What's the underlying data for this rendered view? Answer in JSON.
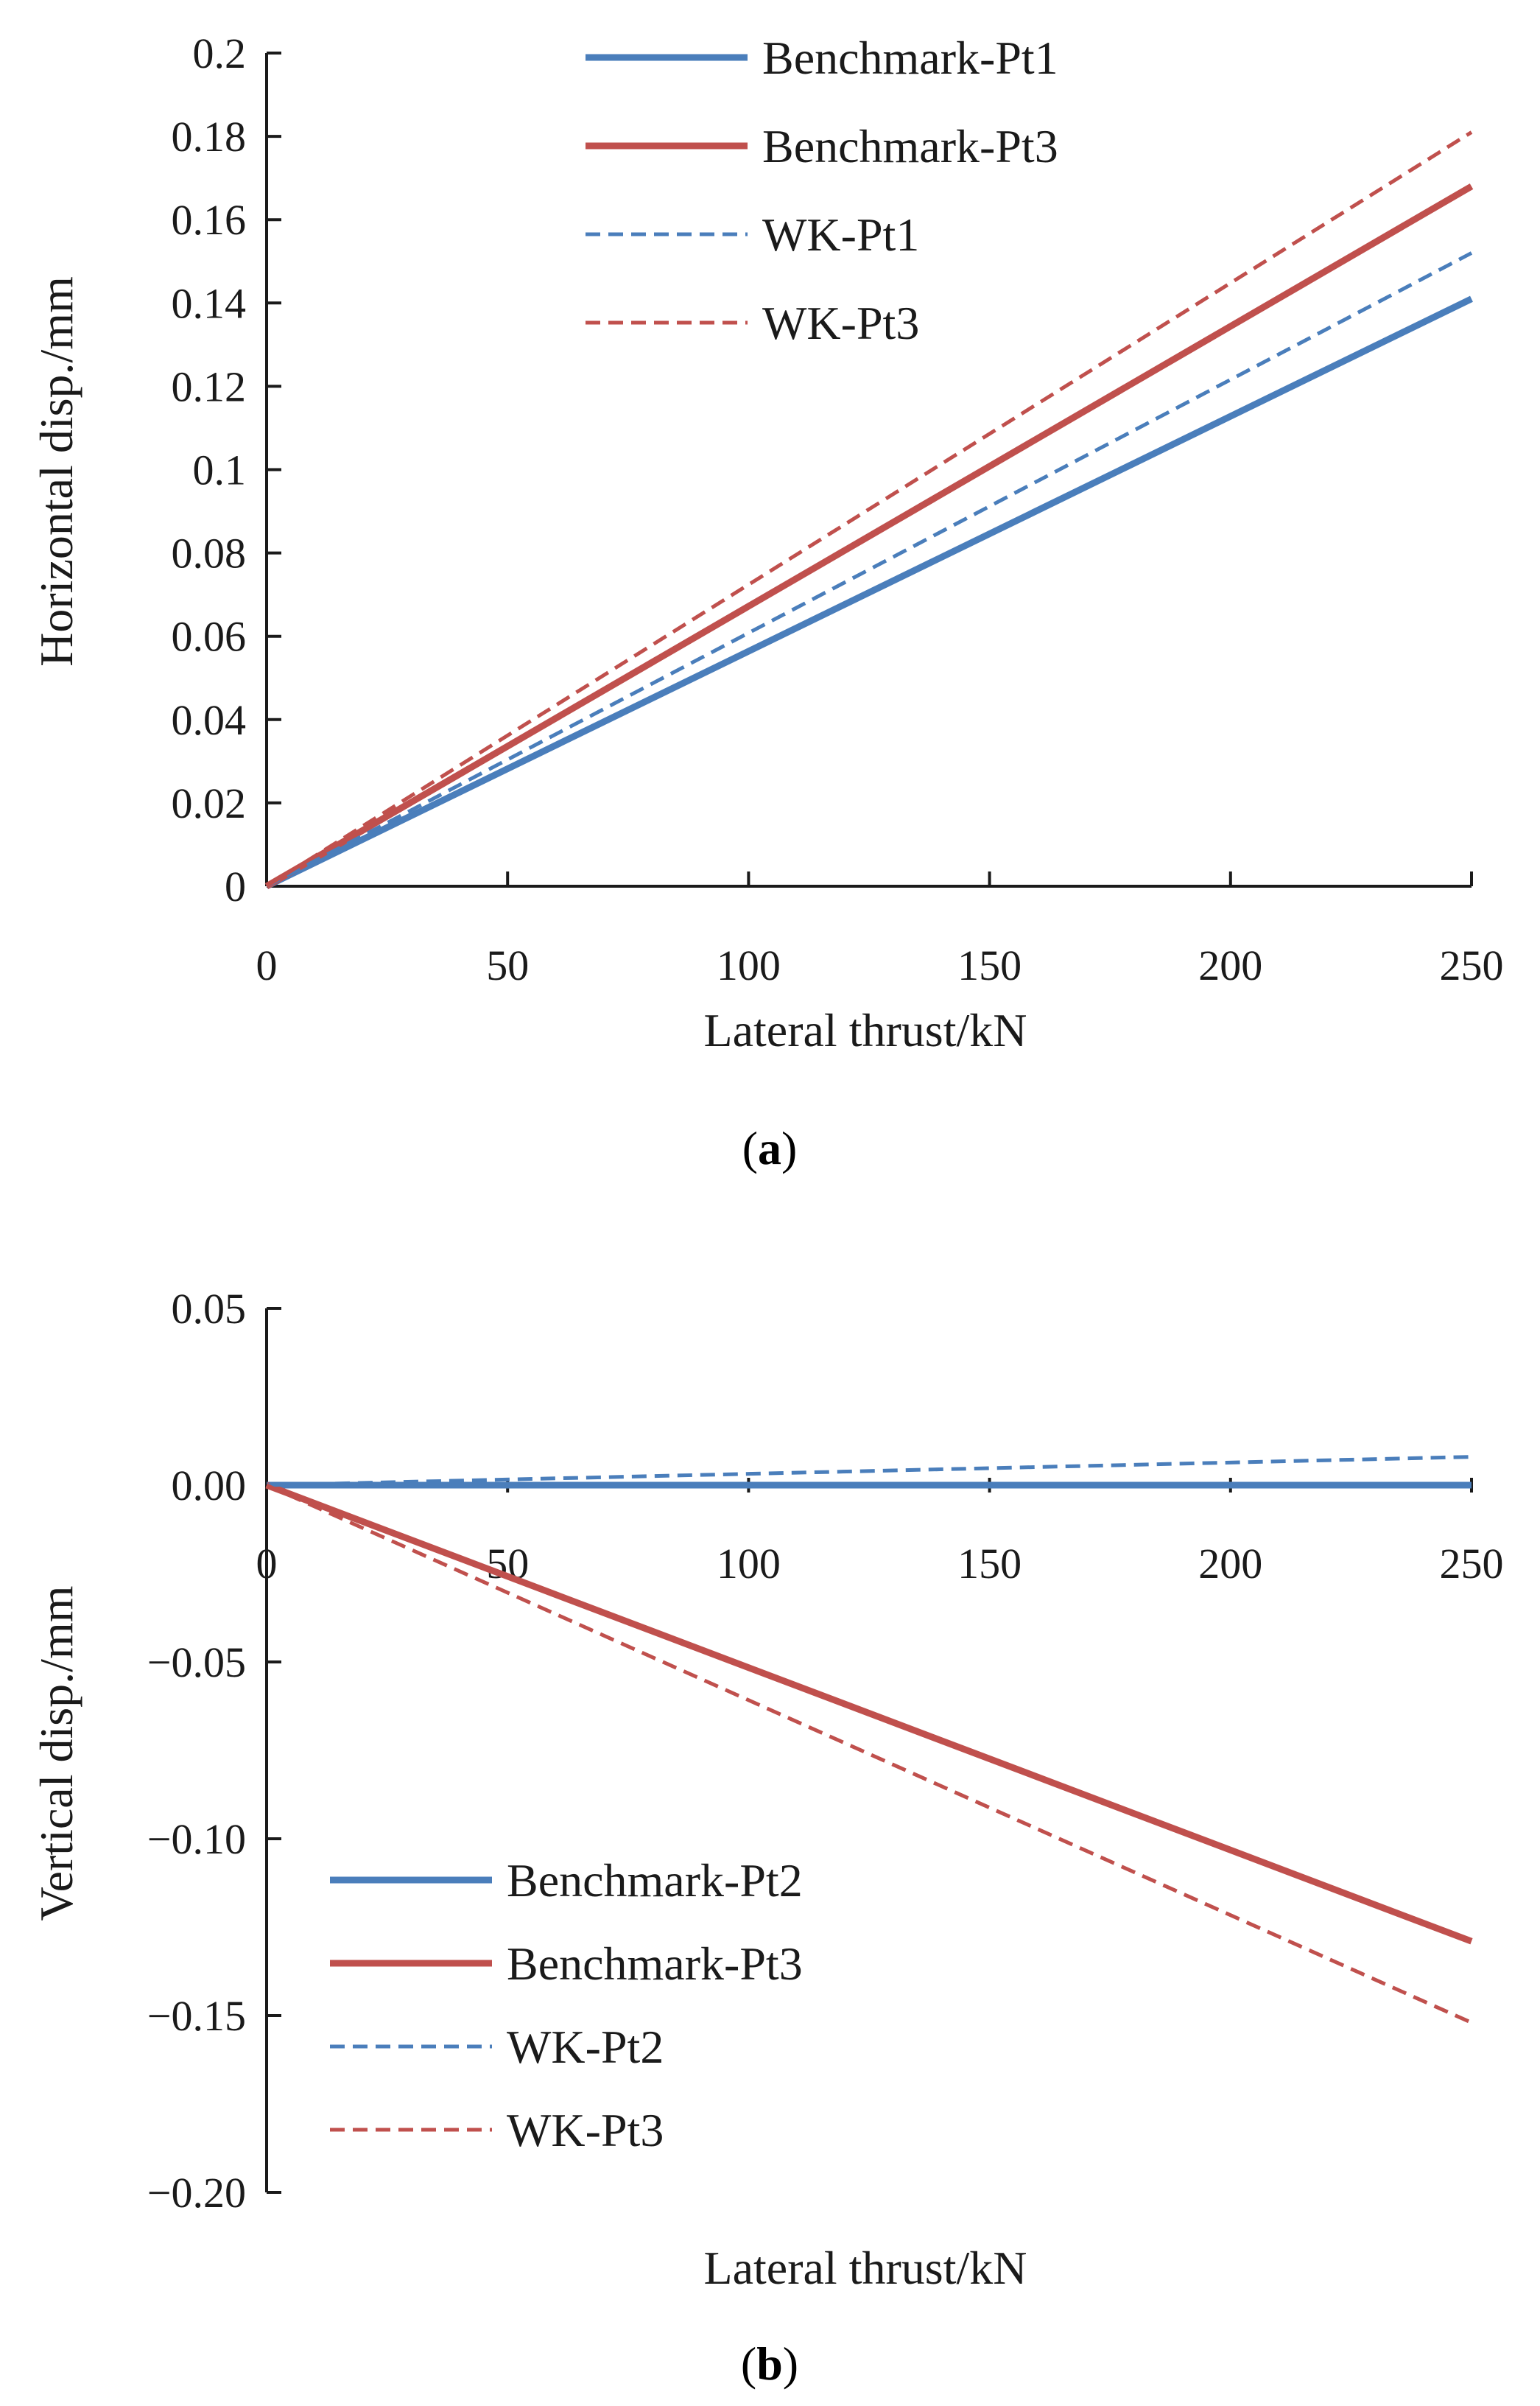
{
  "chart_data": [
    {
      "id": "a",
      "type": "line",
      "caption": "a",
      "xlabel": "Lateral thrust/kN",
      "ylabel": "Horizontal  disp./mm",
      "xlim": [
        0,
        250
      ],
      "ylim": [
        0,
        0.2
      ],
      "xticks": [
        "0",
        "50",
        "100",
        "150",
        "200",
        "250"
      ],
      "yticks": [
        "0",
        "0.02",
        "0.04",
        "0.06",
        "0.08",
        "0.1",
        "0.12",
        "0.14",
        "0.16",
        "0.18",
        "0.2"
      ],
      "legend_position": "top-left",
      "x": [
        0,
        250
      ],
      "series": [
        {
          "name": "Benchmark-Pt1",
          "values": [
            0,
            0.141
          ],
          "color": "#4a7ebb",
          "dash": "solid"
        },
        {
          "name": "Benchmark-Pt3",
          "values": [
            0,
            0.168
          ],
          "color": "#c0504d",
          "dash": "solid"
        },
        {
          "name": "WK-Pt1",
          "values": [
            0,
            0.152
          ],
          "color": "#4a7ebb",
          "dash": "dashed"
        },
        {
          "name": "WK-Pt3",
          "values": [
            0,
            0.181
          ],
          "color": "#c0504d",
          "dash": "dashed"
        }
      ]
    },
    {
      "id": "b",
      "type": "line",
      "caption": "b",
      "xlabel": "Lateral thrust/kN",
      "ylabel": "Vertical  disp./mm",
      "xlim": [
        0,
        250
      ],
      "ylim": [
        -0.2,
        0.05
      ],
      "xticks": [
        "0",
        "50",
        "100",
        "150",
        "200",
        "250"
      ],
      "yticks": [
        "0.05",
        "0.00",
        "−0.05",
        "−0.10",
        "−0.15",
        "−0.20"
      ],
      "legend_position": "bottom-left",
      "x": [
        0,
        250
      ],
      "series": [
        {
          "name": "Benchmark-Pt2",
          "values": [
            0,
            0.0
          ],
          "color": "#4a7ebb",
          "dash": "solid"
        },
        {
          "name": "Benchmark-Pt3",
          "values": [
            0,
            -0.129
          ],
          "color": "#c0504d",
          "dash": "solid"
        },
        {
          "name": "WK-Pt2",
          "values": [
            0,
            0.008
          ],
          "color": "#4a7ebb",
          "dash": "dashed"
        },
        {
          "name": "WK-Pt3",
          "values": [
            0,
            -0.152
          ],
          "color": "#c0504d",
          "dash": "dashed"
        }
      ]
    }
  ]
}
